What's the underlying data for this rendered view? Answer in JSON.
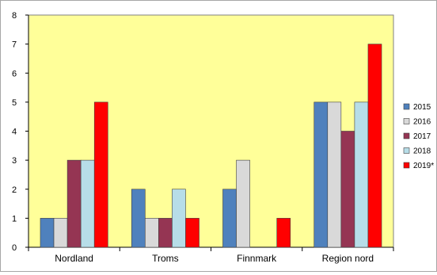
{
  "chart_data": {
    "type": "bar",
    "categories": [
      "Nordland",
      "Troms",
      "Finnmark",
      "Region nord"
    ],
    "series": [
      {
        "name": "2015",
        "color": "#4f81bd",
        "values": [
          1,
          2,
          2,
          5
        ]
      },
      {
        "name": "2016",
        "color": "#d9d9d9",
        "values": [
          1,
          1,
          3,
          5
        ]
      },
      {
        "name": "2017",
        "color": "#953553",
        "values": [
          3,
          1,
          0,
          4
        ]
      },
      {
        "name": "2018",
        "color": "#b7dde8",
        "values": [
          3,
          2,
          0,
          5
        ]
      },
      {
        "name": "2019*",
        "color": "#ff0000",
        "values": [
          5,
          1,
          1,
          7
        ]
      }
    ],
    "ylim": [
      0,
      8
    ],
    "yticks": [
      "0",
      "1",
      "2",
      "3",
      "4",
      "5",
      "6",
      "7",
      "8"
    ],
    "grid": false,
    "legend": "right",
    "plot_background": "#ffff99"
  }
}
